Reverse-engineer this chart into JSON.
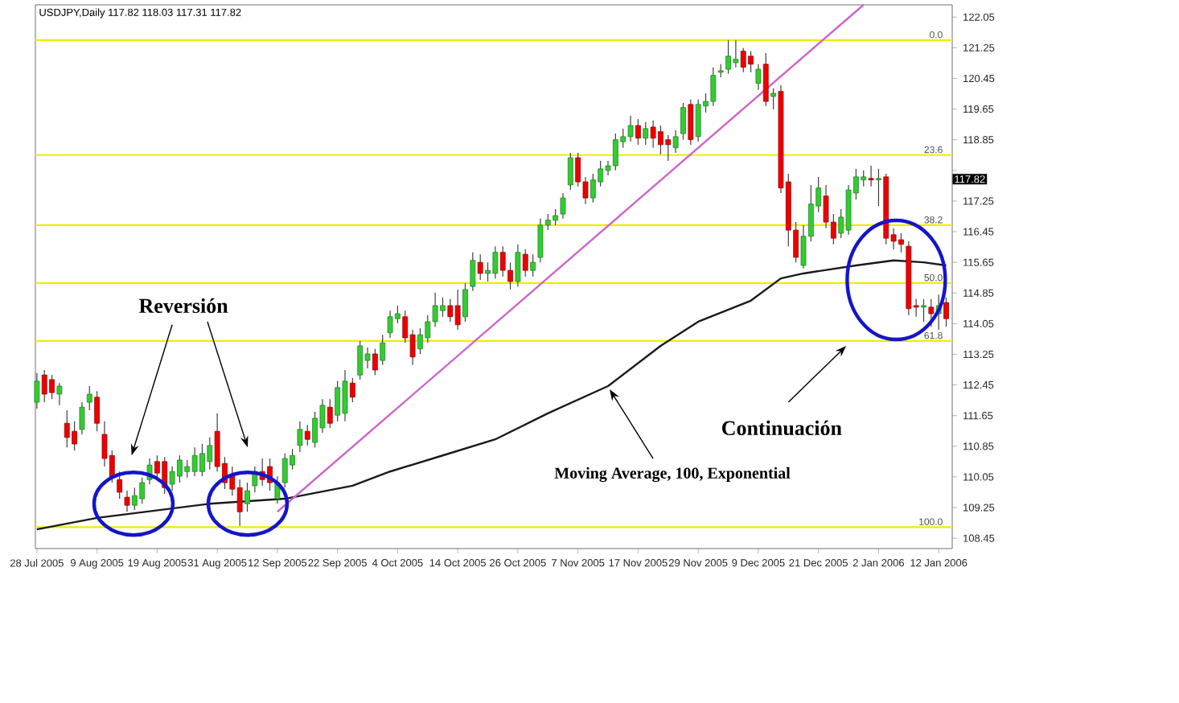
{
  "chart_data": {
    "type": "candlestick",
    "title": "USDJPY,Daily 117.82 118.03 117.31 117.82",
    "categories": [
      "28 Jul 2005",
      null,
      null,
      null,
      null,
      null,
      null,
      null,
      "9 Aug 2005",
      null,
      null,
      null,
      null,
      null,
      null,
      null,
      "19 Aug 2005",
      null,
      null,
      null,
      null,
      null,
      null,
      null,
      "31 Aug 2005",
      null,
      null,
      null,
      null,
      null,
      null,
      null,
      "12 Sep 2005",
      null,
      null,
      null,
      null,
      null,
      null,
      null,
      "22 Sep 2005",
      null,
      null,
      null,
      null,
      null,
      null,
      null,
      "4 Oct 2005",
      null,
      null,
      null,
      null,
      null,
      null,
      null,
      "14 Oct 2005",
      null,
      null,
      null,
      null,
      null,
      null,
      null,
      "26 Oct 2005",
      null,
      null,
      null,
      null,
      null,
      null,
      null,
      "7 Nov 2005",
      null,
      null,
      null,
      null,
      null,
      null,
      null,
      "17 Nov 2005",
      null,
      null,
      null,
      null,
      null,
      null,
      null,
      "29 Nov 2005",
      null,
      null,
      null,
      null,
      null,
      null,
      null,
      "9 Dec 2005",
      null,
      null,
      null,
      null,
      null,
      null,
      null,
      "21 Dec 2005",
      null,
      null,
      null,
      null,
      null,
      null,
      null,
      "2 Jan 2006",
      null,
      null,
      null,
      null,
      null,
      null,
      null,
      "12 Jan 2006",
      null
    ],
    "ohlc": [
      [
        112.0,
        112.76,
        111.83,
        112.55
      ],
      [
        112.71,
        112.84,
        112.0,
        112.21
      ],
      [
        112.59,
        112.71,
        112.08,
        112.25
      ],
      [
        112.21,
        112.5,
        111.92,
        112.42
      ],
      [
        111.45,
        111.79,
        110.82,
        111.08
      ],
      [
        111.24,
        111.5,
        110.74,
        110.91
      ],
      [
        111.29,
        112.0,
        111.16,
        111.87
      ],
      [
        112.0,
        112.42,
        111.79,
        112.21
      ],
      [
        112.13,
        112.29,
        111.24,
        111.45
      ],
      [
        111.16,
        111.5,
        110.32,
        110.53
      ],
      [
        110.61,
        110.74,
        109.9,
        110.03
      ],
      [
        109.98,
        110.19,
        109.48,
        109.65
      ],
      [
        109.52,
        109.69,
        109.14,
        109.31
      ],
      [
        109.31,
        109.77,
        109.19,
        109.56
      ],
      [
        109.48,
        110.03,
        109.35,
        109.9
      ],
      [
        109.98,
        110.53,
        109.86,
        110.36
      ],
      [
        110.45,
        110.61,
        110.03,
        110.15
      ],
      [
        110.45,
        110.57,
        109.61,
        109.77
      ],
      [
        109.86,
        110.32,
        109.69,
        110.19
      ],
      [
        110.07,
        110.61,
        109.9,
        110.49
      ],
      [
        110.19,
        110.49,
        110.03,
        110.32
      ],
      [
        110.19,
        110.82,
        110.07,
        110.61
      ],
      [
        110.19,
        110.91,
        110.07,
        110.66
      ],
      [
        110.45,
        111.08,
        110.24,
        110.87
      ],
      [
        111.24,
        111.71,
        110.19,
        110.32
      ],
      [
        110.4,
        110.57,
        109.73,
        109.9
      ],
      [
        110.11,
        110.32,
        109.56,
        109.73
      ],
      [
        109.77,
        109.98,
        108.77,
        109.14
      ],
      [
        109.35,
        109.9,
        109.14,
        109.69
      ],
      [
        109.82,
        110.32,
        109.65,
        110.19
      ],
      [
        110.19,
        110.53,
        109.82,
        109.98
      ],
      [
        110.32,
        110.53,
        109.69,
        109.9
      ],
      [
        109.48,
        110.07,
        109.35,
        109.9
      ],
      [
        109.9,
        110.66,
        109.77,
        110.53
      ],
      [
        110.36,
        110.78,
        110.24,
        110.61
      ],
      [
        110.87,
        111.5,
        110.7,
        111.29
      ],
      [
        111.24,
        111.41,
        110.87,
        111.03
      ],
      [
        110.95,
        111.75,
        110.82,
        111.58
      ],
      [
        111.33,
        112.08,
        111.2,
        111.92
      ],
      [
        111.87,
        112.08,
        111.33,
        111.45
      ],
      [
        111.66,
        112.55,
        111.5,
        112.38
      ],
      [
        111.71,
        112.84,
        111.5,
        112.55
      ],
      [
        112.5,
        112.63,
        112.0,
        112.13
      ],
      [
        112.71,
        113.6,
        112.59,
        113.47
      ],
      [
        113.09,
        113.43,
        112.88,
        113.26
      ],
      [
        113.26,
        113.39,
        112.71,
        112.84
      ],
      [
        113.09,
        113.76,
        112.97,
        113.55
      ],
      [
        113.81,
        114.39,
        113.68,
        114.23
      ],
      [
        114.18,
        114.52,
        114.06,
        114.31
      ],
      [
        114.23,
        114.39,
        113.55,
        113.68
      ],
      [
        113.76,
        113.89,
        112.97,
        113.18
      ],
      [
        113.39,
        113.93,
        113.26,
        113.76
      ],
      [
        113.68,
        114.27,
        113.55,
        114.1
      ],
      [
        114.1,
        114.86,
        113.97,
        114.52
      ],
      [
        114.39,
        114.73,
        114.23,
        114.52
      ],
      [
        114.52,
        114.69,
        114.1,
        114.23
      ],
      [
        114.52,
        114.94,
        113.89,
        114.02
      ],
      [
        114.23,
        115.11,
        114.1,
        114.94
      ],
      [
        115.02,
        115.91,
        114.9,
        115.7
      ],
      [
        115.65,
        115.86,
        115.19,
        115.36
      ],
      [
        115.36,
        115.65,
        115.15,
        115.44
      ],
      [
        115.36,
        116.07,
        115.23,
        115.91
      ],
      [
        115.91,
        116.07,
        115.28,
        115.44
      ],
      [
        115.44,
        115.65,
        114.94,
        115.15
      ],
      [
        115.15,
        116.12,
        115.02,
        115.91
      ],
      [
        115.86,
        115.99,
        115.28,
        115.44
      ],
      [
        115.44,
        115.86,
        115.28,
        115.65
      ],
      [
        115.78,
        116.79,
        115.65,
        116.62
      ],
      [
        116.62,
        116.91,
        116.49,
        116.75
      ],
      [
        116.75,
        117.04,
        116.62,
        116.87
      ],
      [
        116.91,
        117.46,
        116.79,
        117.33
      ],
      [
        117.67,
        118.51,
        117.54,
        118.38
      ],
      [
        118.38,
        118.51,
        117.63,
        117.75
      ],
      [
        117.75,
        117.88,
        117.17,
        117.33
      ],
      [
        117.33,
        117.96,
        117.21,
        117.8
      ],
      [
        117.75,
        118.3,
        117.63,
        118.09
      ],
      [
        118.05,
        118.3,
        117.92,
        118.17
      ],
      [
        118.17,
        119.01,
        118.05,
        118.85
      ],
      [
        118.8,
        119.14,
        118.64,
        118.93
      ],
      [
        118.93,
        119.48,
        118.8,
        119.22
      ],
      [
        119.22,
        119.39,
        118.72,
        118.89
      ],
      [
        118.89,
        119.31,
        118.72,
        119.14
      ],
      [
        119.18,
        119.35,
        118.64,
        118.89
      ],
      [
        119.06,
        119.22,
        118.47,
        118.72
      ],
      [
        118.85,
        118.97,
        118.3,
        118.72
      ],
      [
        118.64,
        119.1,
        118.51,
        118.93
      ],
      [
        119.01,
        119.81,
        118.85,
        119.69
      ],
      [
        119.77,
        119.9,
        118.72,
        118.85
      ],
      [
        118.93,
        119.9,
        118.8,
        119.77
      ],
      [
        119.73,
        120.06,
        119.56,
        119.85
      ],
      [
        119.85,
        120.74,
        119.73,
        120.53
      ],
      [
        120.61,
        120.82,
        120.48,
        120.65
      ],
      [
        120.69,
        121.45,
        120.57,
        121.03
      ],
      [
        120.86,
        121.45,
        120.74,
        120.95
      ],
      [
        121.16,
        121.24,
        120.61,
        120.74
      ],
      [
        121.03,
        121.16,
        120.61,
        120.82
      ],
      [
        120.32,
        120.82,
        120.15,
        120.69
      ],
      [
        120.82,
        121.11,
        119.73,
        119.85
      ],
      [
        119.98,
        120.19,
        119.64,
        120.06
      ],
      [
        120.11,
        120.27,
        117.46,
        117.59
      ],
      [
        117.75,
        117.96,
        116.07,
        116.49
      ],
      [
        116.49,
        116.7,
        115.65,
        115.78
      ],
      [
        115.57,
        116.62,
        115.49,
        116.33
      ],
      [
        116.33,
        117.67,
        116.2,
        117.17
      ],
      [
        117.12,
        117.88,
        116.96,
        117.59
      ],
      [
        117.38,
        117.67,
        116.54,
        116.7
      ],
      [
        116.7,
        116.91,
        116.12,
        116.28
      ],
      [
        116.41,
        117.04,
        116.28,
        116.83
      ],
      [
        116.49,
        117.67,
        116.37,
        117.54
      ],
      [
        117.46,
        118.09,
        117.29,
        117.88
      ],
      [
        117.8,
        118.05,
        117.63,
        117.88
      ],
      [
        117.84,
        118.17,
        117.63,
        117.8
      ],
      [
        117.8,
        118.09,
        117.12,
        117.84
      ],
      [
        117.88,
        117.96,
        116.12,
        116.28
      ],
      [
        116.37,
        116.54,
        115.99,
        116.2
      ],
      [
        116.24,
        116.41,
        115.91,
        116.12
      ],
      [
        116.07,
        116.2,
        114.27,
        114.44
      ],
      [
        114.52,
        114.69,
        114.23,
        114.48
      ],
      [
        114.48,
        114.69,
        114.1,
        114.52
      ],
      [
        114.48,
        114.69,
        113.97,
        114.31
      ],
      [
        114.31,
        114.81,
        113.89,
        114.52
      ],
      [
        114.6,
        114.73,
        113.97,
        114.18
      ]
    ],
    "colors": [
      "#33cc33",
      "#ee0000",
      "#ee0000",
      "#33cc33",
      "#ee0000",
      "#ee0000",
      "#33cc33",
      "#33cc33",
      "#ee0000",
      "#ee0000",
      "#ee0000",
      "#ee0000",
      "#ee0000",
      "#33cc33",
      "#33cc33",
      "#33cc33",
      "#ee0000",
      "#ee0000",
      "#33cc33",
      "#33cc33",
      "#33cc33",
      "#33cc33",
      "#33cc33",
      "#33cc33",
      "#ee0000",
      "#ee0000",
      "#ee0000",
      "#ee0000",
      "#33cc33",
      "#33cc33",
      "#ee0000",
      "#ee0000",
      "#33cc33",
      "#33cc33",
      "#33cc33",
      "#33cc33",
      "#ee0000",
      "#33cc33",
      "#33cc33",
      "#ee0000",
      "#33cc33",
      "#33cc33",
      "#ee0000",
      "#33cc33",
      "#33cc33",
      "#ee0000",
      "#33cc33",
      "#33cc33",
      "#33cc33",
      "#ee0000",
      "#ee0000",
      "#33cc33",
      "#33cc33",
      "#33cc33",
      "#33cc33",
      "#ee0000",
      "#ee0000",
      "#33cc33",
      "#33cc33",
      "#ee0000",
      "#33cc33",
      "#33cc33",
      "#ee0000",
      "#ee0000",
      "#33cc33",
      "#ee0000",
      "#33cc33",
      "#33cc33",
      "#33cc33",
      "#33cc33",
      "#33cc33",
      "#33cc33",
      "#ee0000",
      "#ee0000",
      "#33cc33",
      "#33cc33",
      "#33cc33",
      "#33cc33",
      "#33cc33",
      "#33cc33",
      "#ee0000",
      "#33cc33",
      "#ee0000",
      "#ee0000",
      "#ee0000",
      "#33cc33",
      "#33cc33",
      "#ee0000",
      "#33cc33",
      "#33cc33",
      "#33cc33",
      "#33cc33",
      "#33cc33",
      "#33cc33",
      "#ee0000",
      "#ee0000",
      "#33cc33",
      "#ee0000",
      "#33cc33",
      "#ee0000",
      "#ee0000",
      "#ee0000",
      "#33cc33",
      "#33cc33",
      "#33cc33",
      "#ee0000",
      "#ee0000",
      "#33cc33",
      "#33cc33",
      "#33cc33",
      "#33cc33",
      "#ee0000",
      "#33cc33",
      "#ee0000",
      "#ee0000",
      "#ee0000",
      "#ee0000",
      "#ee0000",
      "#33cc33",
      "#ee0000",
      "#33cc33",
      "#ee0000"
    ],
    "series": [
      {
        "type": "line",
        "name": "Moving Average, 100, Exponential",
        "color": "#1a1a1a",
        "values": [
          108.68,
          null,
          null,
          null,
          null,
          null,
          null,
          null,
          108.98,
          null,
          null,
          null,
          null,
          null,
          null,
          null,
          null,
          null,
          null,
          null,
          null,
          null,
          null,
          109.35,
          null,
          null,
          null,
          null,
          null,
          null,
          null,
          null,
          null,
          109.48,
          null,
          null,
          null,
          null,
          null,
          null,
          null,
          null,
          109.82,
          null,
          null,
          null,
          null,
          110.19,
          null,
          null,
          null,
          null,
          null,
          null,
          110.61,
          null,
          null,
          null,
          null,
          null,
          null,
          111.03,
          null,
          null,
          null,
          null,
          null,
          null,
          111.71,
          null,
          null,
          null,
          null,
          null,
          null,
          null,
          112.42,
          null,
          null,
          null,
          null,
          null,
          null,
          113.47,
          null,
          null,
          null,
          null,
          114.1,
          null,
          null,
          null,
          null,
          null,
          null,
          114.65,
          null,
          null,
          null,
          115.23,
          null,
          null,
          115.36,
          null,
          null,
          null,
          null,
          null,
          null,
          115.57,
          null,
          null,
          null,
          null,
          115.7,
          null,
          null,
          null,
          115.65,
          null,
          null,
          115.57
        ]
      },
      {
        "type": "line",
        "color": "#cc66cc",
        "values": [
          null,
          null,
          null,
          null,
          null,
          null,
          null,
          null,
          null,
          null,
          null,
          null,
          null,
          null,
          null,
          null,
          null,
          null,
          null,
          null,
          null,
          null,
          null,
          null,
          null,
          null,
          null,
          null,
          null,
          null,
          null,
          null,
          109.14,
          null,
          null,
          null,
          null,
          null,
          null,
          null,
          null,
          null,
          null,
          null,
          null,
          null,
          null,
          null,
          null,
          null,
          null,
          null,
          null,
          null,
          null,
          null,
          null,
          null,
          null,
          null,
          null,
          null,
          null,
          null,
          null,
          null,
          null,
          null,
          null,
          null,
          null,
          null,
          null,
          null,
          null,
          null,
          null,
          null,
          null,
          null,
          null,
          null,
          null,
          null,
          null,
          null,
          null,
          null,
          null,
          null,
          null,
          null,
          null,
          null,
          null,
          null,
          null,
          null,
          null,
          null,
          null,
          null,
          null,
          null,
          null,
          null,
          null,
          null,
          null,
          null,
          122.37,
          null,
          null,
          null,
          null,
          null,
          null,
          null,
          null,
          null,
          null,
          null
        ]
      }
    ],
    "ylim": [
      108.18,
      122.37
    ],
    "yticks": [
      108.45,
      109.25,
      110.05,
      110.85,
      111.65,
      112.45,
      113.25,
      114.05,
      114.85,
      115.65,
      116.45,
      117.25,
      {
        "value": 118.05,
        "label": null
      },
      118.85,
      119.65,
      120.45,
      121.25,
      122.05
    ],
    "ref_lines": [
      {
        "axis": "y",
        "value": 121.45,
        "color": "#eeee00"
      },
      {
        "axis": "y",
        "value": 118.45,
        "color": "#eeee00"
      },
      {
        "axis": "y",
        "value": 116.62,
        "color": "#eeee00"
      },
      {
        "axis": "y",
        "value": 115.11,
        "color": "#eeee00"
      },
      {
        "axis": "y",
        "value": 113.6,
        "color": "#eeee00"
      },
      {
        "axis": "y",
        "value": 108.74,
        "color": "#eeee00"
      }
    ],
    "annotations": [
      "Reversión",
      "Continuación",
      "0.0",
      "23.6",
      "38.2",
      "50.0",
      "61.8",
      "100.0",
      {
        "text": "117.82",
        "y": 117.82
      }
    ]
  }
}
